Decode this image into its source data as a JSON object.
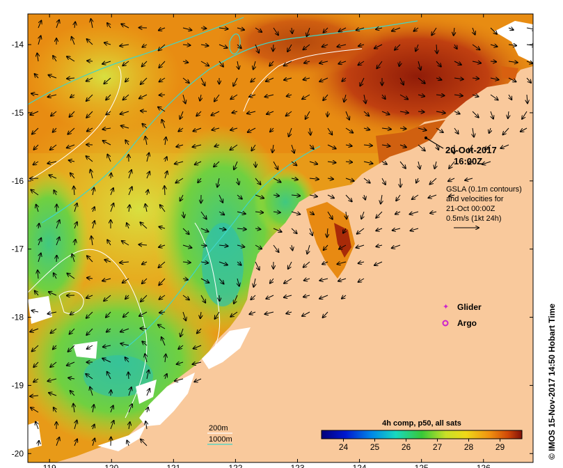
{
  "map": {
    "x_ticks": [
      "119",
      "120",
      "121",
      "122",
      "123",
      "124",
      "125",
      "126"
    ],
    "x_tick_lons": [
      119,
      120,
      121,
      122,
      123,
      124,
      125,
      126
    ],
    "y_ticks": [
      "-14",
      "-15",
      "-16",
      "-17",
      "-18",
      "-19",
      "-20"
    ],
    "y_tick_lats": [
      -14,
      -15,
      -16,
      -17,
      -18,
      -19,
      -20
    ],
    "lon_range": [
      118.65,
      126.8
    ],
    "lat_range": [
      -20.13,
      -13.55
    ]
  },
  "annotations": {
    "date": "20-Oct-2017",
    "time": "16:00Z",
    "gsla_line1": "GSLA (0.1m contours)",
    "gsla_line2": "and velocities for",
    "gsla_line3": "21-Oct 00:00Z",
    "gsla_line4": "0.5m/s (1kt 24h)"
  },
  "legend": {
    "glider": "Glider",
    "argo": "Argo",
    "glider_color": "#cc22cc",
    "argo_color": "#cc22cc"
  },
  "isobaths": {
    "shallow": "200m",
    "deep": "1000m",
    "shallow_color": "#ffffff",
    "deep_color": "#3fd6c8"
  },
  "colorbar": {
    "title": "4h comp, p50, all sats",
    "ticks": [
      "24",
      "25",
      "26",
      "27",
      "28",
      "29"
    ],
    "tick_values": [
      24,
      25,
      26,
      27,
      28,
      29
    ],
    "range": [
      23.3,
      29.7
    ]
  },
  "credit": "© IMOS 15-Nov-2017 14:50 Hobart Time",
  "colors": {
    "land": "#f9c99c",
    "cloud": "#ffffff",
    "warm": "#e88a10",
    "hot": "#8a1a08",
    "cool": "#28b860"
  }
}
